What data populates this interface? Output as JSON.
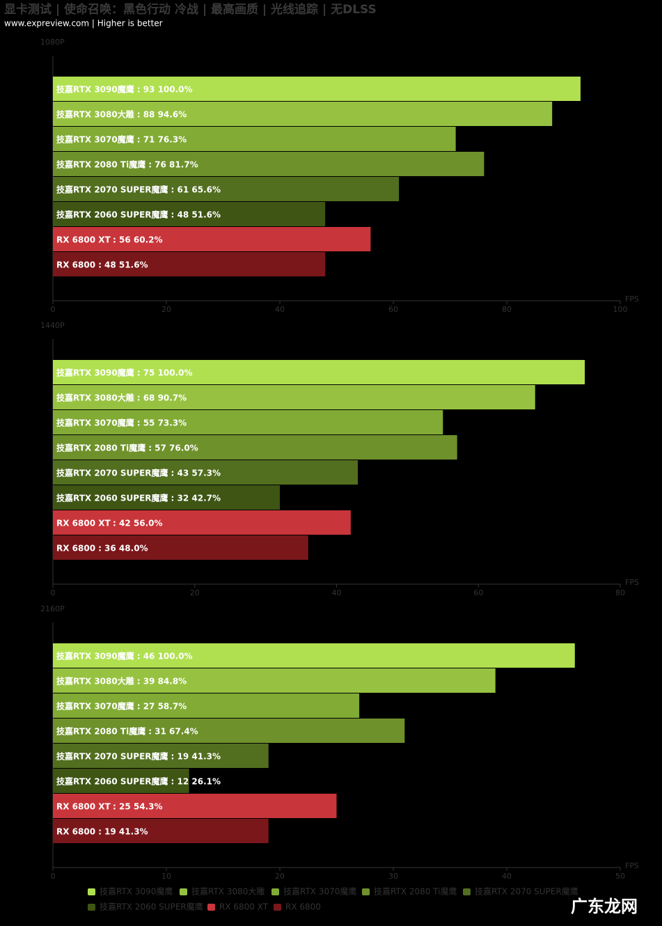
{
  "title": "显卡测试 | 使命召唤：黑色行动 冷战 | 最高画质 | 光线追踪 | 无DLSS",
  "subtitle": "www.expreview.com | Higher is better",
  "watermark": "广东龙网",
  "legend": {
    "names": [
      "技嘉RTX 3090魔鹰",
      "技嘉RTX 3080大雕",
      "技嘉RTX 3070魔鹰",
      "技嘉RTX 2080 Ti魔鹰",
      "技嘉RTX 2070 SUPER魔鹰",
      "技嘉RTX 2060 SUPER魔鹰",
      "RX 6800 XT",
      "RX 6800"
    ],
    "colors": [
      "#b0e050",
      "#97c241",
      "#81ab35",
      "#6e912b",
      "#526e1f",
      "#3e5514",
      "#c8353a",
      "#7a171b"
    ]
  },
  "chart_data": [
    {
      "type": "bar",
      "orientation": "horizontal",
      "panel_label": "1080P",
      "x_label": "FPS",
      "values": [
        93,
        88,
        71,
        76,
        61,
        48,
        56,
        48
      ],
      "value_labels": [
        ": 93  100.0%",
        ": 88  94.6%",
        ": 71  76.3%",
        ": 76  81.7%",
        ": 61  65.6%",
        ": 48  51.6%",
        ": 56  60.2%",
        ": 48  51.6%"
      ],
      "xlim": [
        0,
        100
      ],
      "xticks": [
        0,
        20,
        40,
        60,
        80,
        100
      ]
    },
    {
      "type": "bar",
      "orientation": "horizontal",
      "panel_label": "1440P",
      "x_label": "FPS",
      "values": [
        75,
        68,
        55,
        57,
        43,
        32,
        42,
        36
      ],
      "value_labels": [
        ": 75  100.0%",
        ": 68  90.7%",
        ": 55  73.3%",
        ": 57  76.0%",
        ": 43  57.3%",
        ": 32  42.7%",
        ": 42  56.0%",
        ": 36  48.0%"
      ],
      "xlim": [
        0,
        80
      ],
      "xticks": [
        0,
        20,
        40,
        60,
        80
      ]
    },
    {
      "type": "bar",
      "orientation": "horizontal",
      "panel_label": "2160P",
      "x_label": "FPS",
      "values": [
        46,
        39,
        27,
        31,
        19,
        12,
        25,
        19
      ],
      "value_labels": [
        ": 46  100.0%",
        ": 39  84.8%",
        ": 27  58.7%",
        ": 31  67.4%",
        ": 19  41.3%",
        ": 12  26.1%",
        ": 25  54.3%",
        ": 19  41.3%"
      ],
      "xlim": [
        0,
        50
      ],
      "xticks": [
        0,
        10,
        20,
        30,
        40,
        50
      ]
    }
  ]
}
